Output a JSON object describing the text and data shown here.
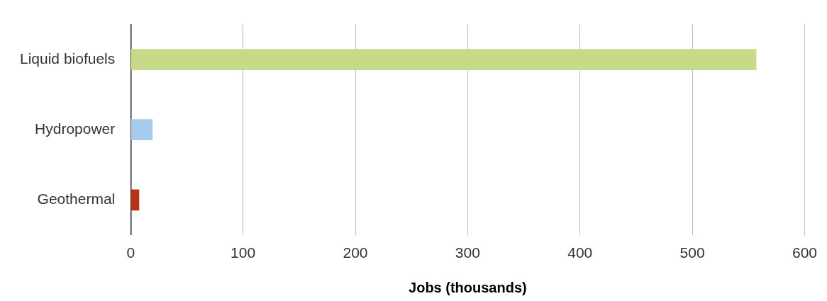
{
  "chart_data": {
    "type": "bar",
    "orientation": "horizontal",
    "categories": [
      "Liquid biofuels",
      "Hydropower",
      "Geothermal"
    ],
    "values": [
      557,
      19.5,
      7.6
    ],
    "colors": [
      "#c6da87",
      "#a6caec",
      "#b8321a"
    ],
    "xlabel": "Jobs (thousands)",
    "xlim": [
      0,
      600
    ],
    "xticks": [
      0,
      100,
      200,
      300,
      400,
      500,
      600
    ],
    "grid": "x",
    "legend": false
  }
}
